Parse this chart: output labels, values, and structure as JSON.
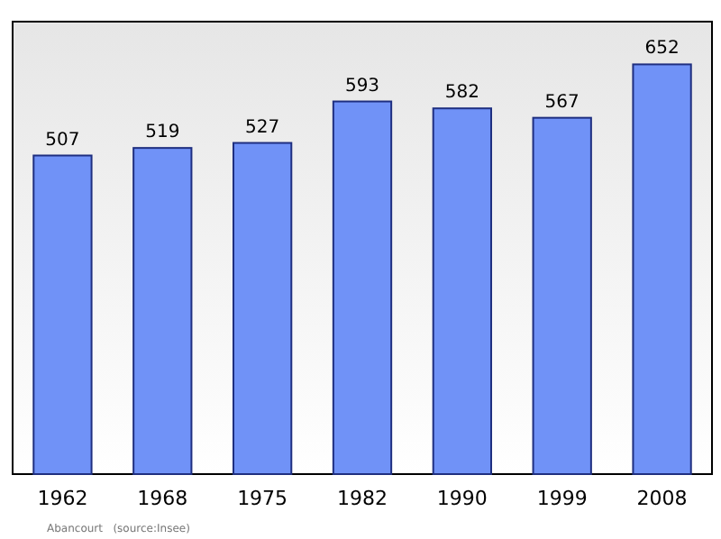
{
  "chart_data": {
    "type": "bar",
    "categories": [
      "1962",
      "1968",
      "1975",
      "1982",
      "1990",
      "1999",
      "2008"
    ],
    "values": [
      507,
      519,
      527,
      593,
      582,
      567,
      652
    ],
    "color": "#7092f7",
    "ylim": [
      0,
      720
    ],
    "data_labels": true,
    "annotations": [
      "Abancourt   (source:Insee)"
    ]
  }
}
